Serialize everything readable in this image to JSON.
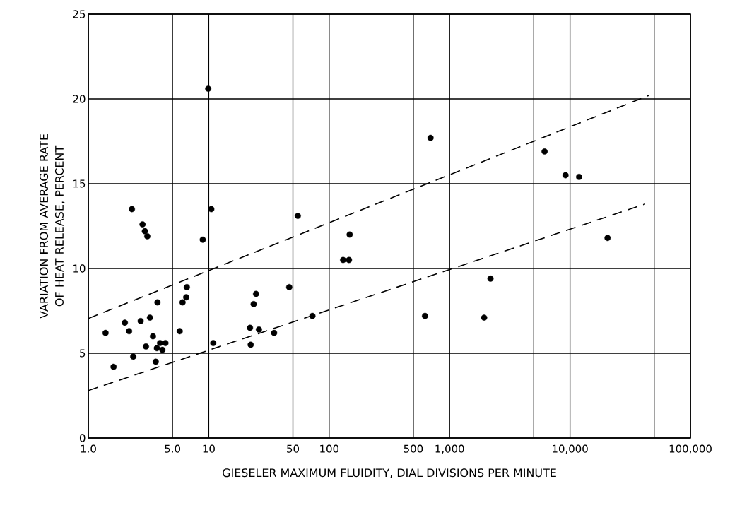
{
  "chart_data": {
    "type": "scatter",
    "xlabel": "GIESELER MAXIMUM FLUIDITY, DIAL DIVISIONS PER MINUTE",
    "ylabel": "VARIATION FROM AVERAGE RATE OF HEAT RELEASE, PERCENT",
    "log": "x",
    "grid": true,
    "marker": "circle",
    "xlim": [
      1,
      100000
    ],
    "ylim": [
      0,
      25
    ],
    "xticks": [
      {
        "value": 1,
        "label": "1.0"
      },
      {
        "value": 5,
        "label": "5.0"
      },
      10,
      50,
      100,
      500,
      {
        "value": 1000,
        "label": "1,000"
      },
      {
        "value": 5000,
        "label": null
      },
      {
        "value": 10000,
        "label": "10,000"
      },
      {
        "value": 50000,
        "label": null
      },
      {
        "value": 100000,
        "label": "100,000"
      }
    ],
    "yticks": [
      0,
      5,
      10,
      15,
      20,
      25
    ],
    "series": [
      {
        "color": "#000000",
        "x": [
          1.39,
          1.62,
          2.01,
          2.18,
          2.36,
          2.3,
          2.82,
          2.95,
          3.09,
          2.72,
          3.01,
          3.25,
          3.44,
          3.63,
          3.75,
          3.71,
          3.94,
          4.12,
          4.37,
          5.74,
          6.06,
          6.58,
          6.5,
          8.92,
          10.5,
          10.9,
          9.9,
          54.9,
          148,
          130.5,
          146,
          46.6,
          24.7,
          23.6,
          22.0,
          26.1,
          22.3,
          34.9,
          72.6,
          695,
          625,
          1936,
          2186,
          6150,
          9180,
          11900,
          20500
        ],
        "values": [
          6.2,
          4.2,
          6.8,
          6.3,
          4.8,
          13.5,
          12.6,
          12.2,
          11.9,
          6.9,
          5.4,
          7.1,
          6.0,
          4.5,
          8.0,
          5.3,
          5.6,
          5.2,
          5.6,
          6.3,
          8.0,
          8.9,
          8.3,
          11.7,
          13.5,
          5.6,
          20.6,
          13.1,
          12.0,
          10.5,
          10.5,
          8.9,
          8.5,
          7.9,
          6.5,
          6.4,
          5.5,
          6.2,
          7.2,
          17.7,
          7.2,
          7.1,
          9.4,
          16.9,
          15.5,
          15.4,
          11.8
        ]
      },
      {
        "type": "line",
        "color": "#000000",
        "line_style": "dashed",
        "marker": "none",
        "x": [
          1,
          45000
        ],
        "values": [
          7.05,
          20.2
        ]
      },
      {
        "type": "line",
        "color": "#000000",
        "line_style": "dashed",
        "marker": "none",
        "x": [
          1,
          42000
        ],
        "values": [
          2.8,
          13.8
        ]
      }
    ]
  }
}
